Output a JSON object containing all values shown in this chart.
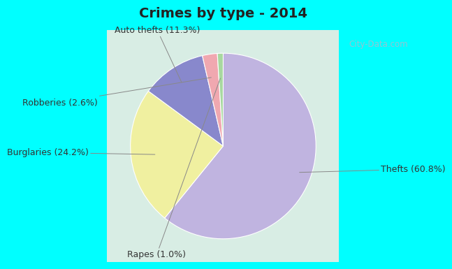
{
  "title": "Crimes by type - 2014",
  "slices": [
    {
      "label": "Thefts (60.8%)",
      "value": 60.8,
      "color": "#c0b4e0"
    },
    {
      "label": "Burglaries (24.2%)",
      "value": 24.2,
      "color": "#f0f0a0"
    },
    {
      "label": "Auto thefts (11.3%)",
      "value": 11.3,
      "color": "#8888cc"
    },
    {
      "label": "Robberies (2.6%)",
      "value": 2.6,
      "color": "#f0a8b0"
    },
    {
      "label": "Rapes (1.0%)",
      "value": 1.0,
      "color": "#a8d8a0"
    }
  ],
  "outer_bg": "#00ffff",
  "inner_bg": "#d8ede4",
  "title_fontsize": 14,
  "label_fontsize": 9,
  "watermark": "City-Data.com"
}
